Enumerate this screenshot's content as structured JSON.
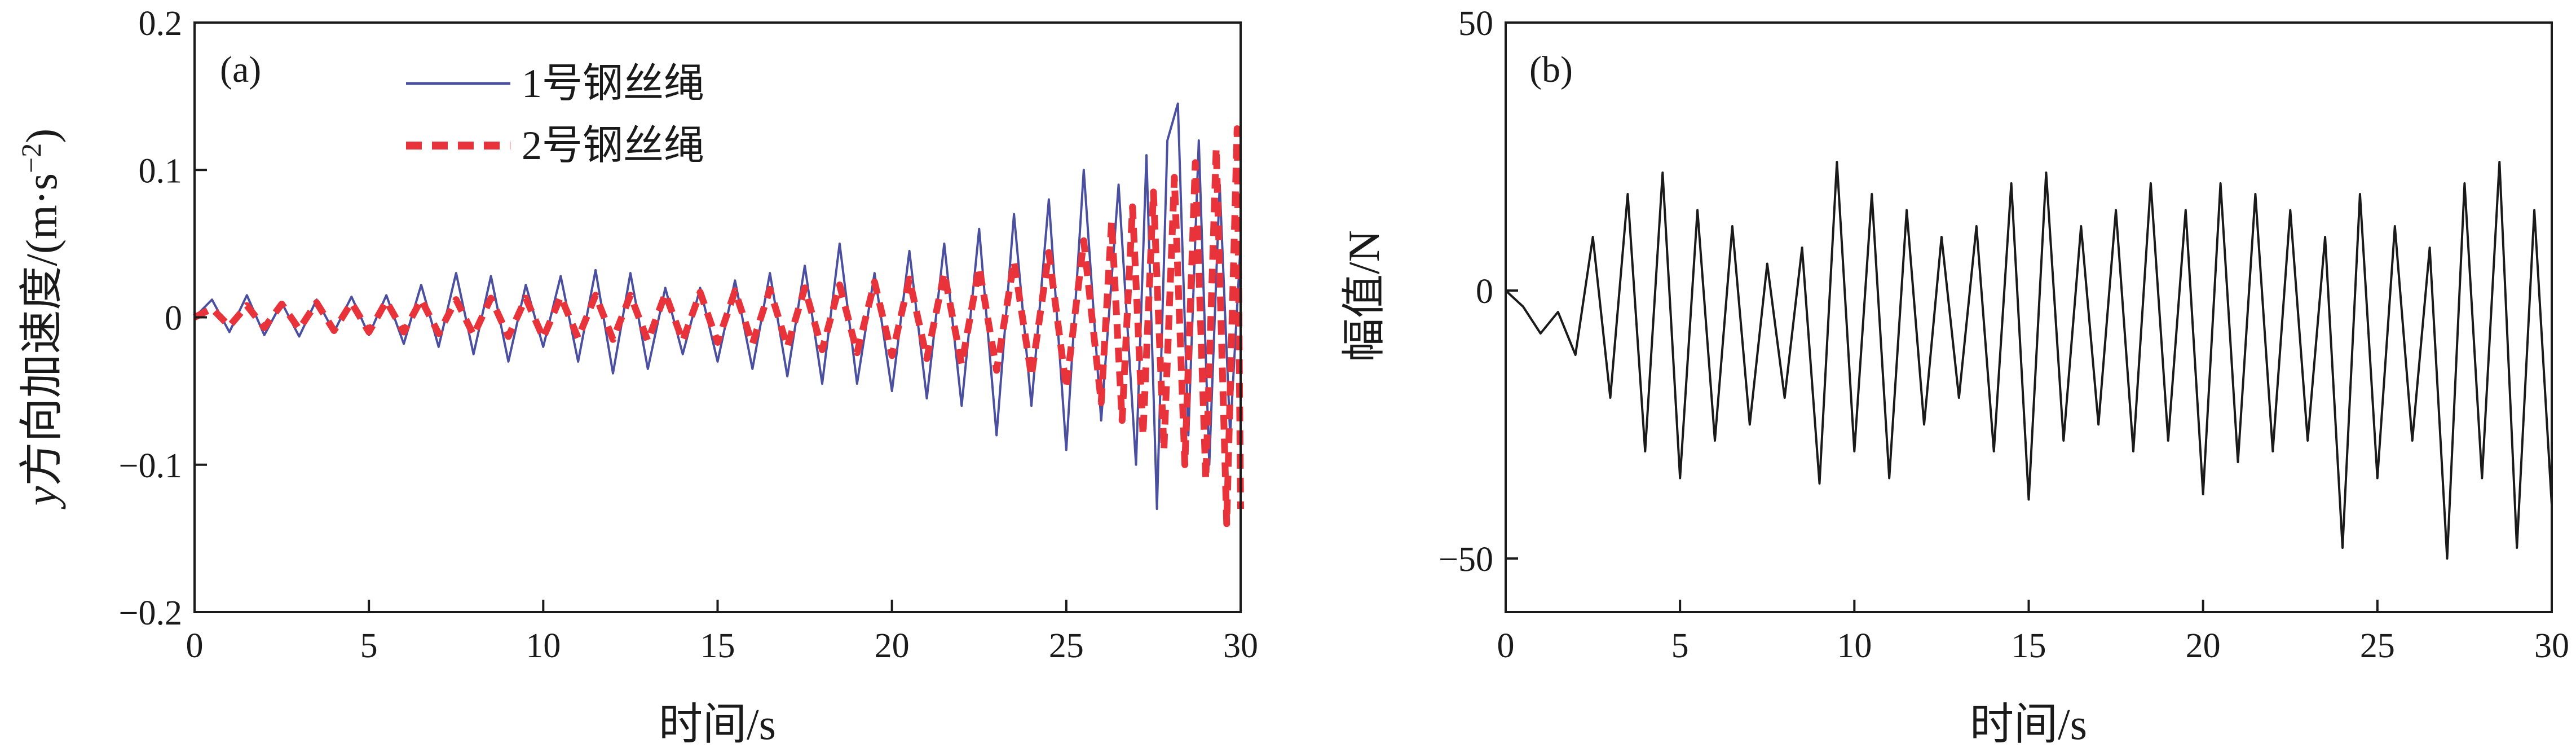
{
  "chart_data": [
    {
      "type": "line",
      "panel_label": "(a)",
      "xlabel": "时间/s",
      "ylabel_italic_var": "y",
      "ylabel": "方向加速度/(m·s",
      "ylabel_sup": "−2",
      "ylabel_close": ")",
      "xlim": [
        0,
        30
      ],
      "ylim": [
        -0.2,
        0.2
      ],
      "xticks": [
        0,
        5,
        10,
        15,
        20,
        25,
        30
      ],
      "xtick_labels": [
        "0",
        "5",
        "10",
        "15",
        "20",
        "25",
        "30"
      ],
      "yticks": [
        -0.2,
        -0.1,
        0,
        0.1,
        0.2
      ],
      "ytick_labels": [
        "−0.2",
        "−0.1",
        "0",
        "0.1",
        "0.2"
      ],
      "legend_position": "top-center",
      "series": [
        {
          "name": "1号钢丝绳",
          "color": "#4a4fa0",
          "style": "solid",
          "x": [
            0,
            0.5,
            1,
            1.5,
            2,
            2.5,
            3,
            3.5,
            4,
            4.5,
            5,
            5.5,
            6,
            6.5,
            7,
            7.5,
            8,
            8.5,
            9,
            9.5,
            10,
            10.5,
            11,
            11.5,
            12,
            12.5,
            13,
            13.5,
            14,
            14.5,
            15,
            15.5,
            16,
            16.5,
            17,
            17.5,
            18,
            18.5,
            19,
            19.5,
            20,
            20.5,
            21,
            21.5,
            22,
            22.5,
            23,
            23.5,
            24,
            24.5,
            25,
            25.5,
            26,
            26.5,
            27,
            27.3,
            27.6,
            27.9,
            28.2,
            28.5,
            28.8,
            29.1,
            29.4,
            29.7,
            30
          ],
          "values": [
            0,
            0.012,
            -0.01,
            0.015,
            -0.012,
            0.01,
            -0.013,
            0.012,
            -0.01,
            0.014,
            -0.012,
            0.015,
            -0.018,
            0.022,
            -0.02,
            0.03,
            -0.025,
            0.028,
            -0.03,
            0.022,
            -0.02,
            0.028,
            -0.03,
            0.032,
            -0.038,
            0.03,
            -0.035,
            0.02,
            -0.025,
            0.02,
            -0.03,
            0.025,
            -0.035,
            0.03,
            -0.04,
            0.035,
            -0.045,
            0.05,
            -0.045,
            0.03,
            -0.05,
            0.045,
            -0.055,
            0.05,
            -0.06,
            0.06,
            -0.08,
            0.07,
            -0.06,
            0.08,
            -0.09,
            0.1,
            -0.07,
            0.09,
            -0.1,
            0.11,
            -0.13,
            0.12,
            0.145,
            -0.08,
            0.12,
            -0.1,
            0.09,
            -0.08,
            0.05
          ]
        },
        {
          "name": "2号钢丝绳",
          "color": "#e8333a",
          "style": "dashed",
          "x": [
            0,
            0.5,
            1,
            1.5,
            2,
            2.5,
            3,
            3.5,
            4,
            4.5,
            5,
            5.5,
            6,
            6.5,
            7,
            7.5,
            8,
            8.5,
            9,
            9.5,
            10,
            10.5,
            11,
            11.5,
            12,
            12.5,
            13,
            13.5,
            14,
            14.5,
            15,
            15.5,
            16,
            16.5,
            17,
            17.5,
            18,
            18.5,
            19,
            19.5,
            20,
            20.5,
            21,
            21.5,
            22,
            22.5,
            23,
            23.5,
            24,
            24.5,
            25,
            25.5,
            26,
            26.3,
            26.6,
            26.9,
            27.2,
            27.5,
            27.8,
            28.1,
            28.4,
            28.7,
            29,
            29.3,
            29.6,
            29.9,
            30
          ],
          "values": [
            0,
            0.006,
            -0.006,
            0.008,
            -0.007,
            0.009,
            -0.008,
            0.01,
            -0.009,
            0.01,
            -0.01,
            0.011,
            -0.01,
            0.012,
            -0.011,
            0.012,
            -0.012,
            0.013,
            -0.013,
            0.013,
            -0.014,
            0.014,
            -0.014,
            0.015,
            -0.015,
            0.015,
            -0.016,
            0.016,
            -0.016,
            0.017,
            -0.017,
            0.018,
            -0.018,
            0.019,
            -0.02,
            0.02,
            -0.022,
            0.022,
            -0.024,
            0.024,
            -0.026,
            0.026,
            -0.028,
            0.03,
            -0.032,
            0.034,
            -0.036,
            0.038,
            -0.04,
            0.044,
            -0.048,
            0.052,
            -0.058,
            0.065,
            -0.07,
            0.075,
            -0.08,
            0.085,
            -0.09,
            0.095,
            -0.1,
            0.105,
            -0.11,
            0.115,
            -0.14,
            0.128,
            -0.13
          ]
        }
      ]
    },
    {
      "type": "line",
      "panel_label": "(b)",
      "xlabel": "时间/s",
      "ylabel": "幅值/N",
      "xlim": [
        0,
        30
      ],
      "ylim": [
        -60,
        50
      ],
      "xticks": [
        0,
        5,
        10,
        15,
        20,
        25,
        30
      ],
      "xtick_labels": [
        "0",
        "5",
        "10",
        "15",
        "20",
        "25",
        "30"
      ],
      "yticks": [
        -50,
        0,
        50
      ],
      "ytick_labels": [
        "−50",
        "0",
        "50"
      ],
      "series": [
        {
          "name": "幅值",
          "color": "#1a1a1a",
          "style": "solid",
          "x": [
            0,
            0.5,
            1,
            1.5,
            2,
            2.5,
            3,
            3.5,
            4,
            4.5,
            5,
            5.5,
            6,
            6.5,
            7,
            7.5,
            8,
            8.5,
            9,
            9.5,
            10,
            10.5,
            11,
            11.5,
            12,
            12.5,
            13,
            13.5,
            14,
            14.5,
            15,
            15.5,
            16,
            16.5,
            17,
            17.5,
            18,
            18.5,
            19,
            19.5,
            20,
            20.5,
            21,
            21.5,
            22,
            22.5,
            23,
            23.5,
            24,
            24.5,
            25,
            25.5,
            26,
            26.5,
            27,
            27.5,
            28,
            28.5,
            29,
            29.5,
            30
          ],
          "values": [
            0,
            -3,
            -8,
            -4,
            -12,
            10,
            -20,
            18,
            -30,
            22,
            -35,
            15,
            -28,
            12,
            -25,
            5,
            -20,
            8,
            -36,
            24,
            -30,
            18,
            -35,
            15,
            -25,
            10,
            -20,
            12,
            -30,
            20,
            -39,
            22,
            -28,
            12,
            -25,
            15,
            -30,
            20,
            -28,
            15,
            -38,
            20,
            -32,
            18,
            -30,
            15,
            -28,
            10,
            -48,
            18,
            -35,
            12,
            -28,
            8,
            -50,
            20,
            -35,
            24,
            -48,
            15,
            -40
          ]
        }
      ]
    }
  ]
}
